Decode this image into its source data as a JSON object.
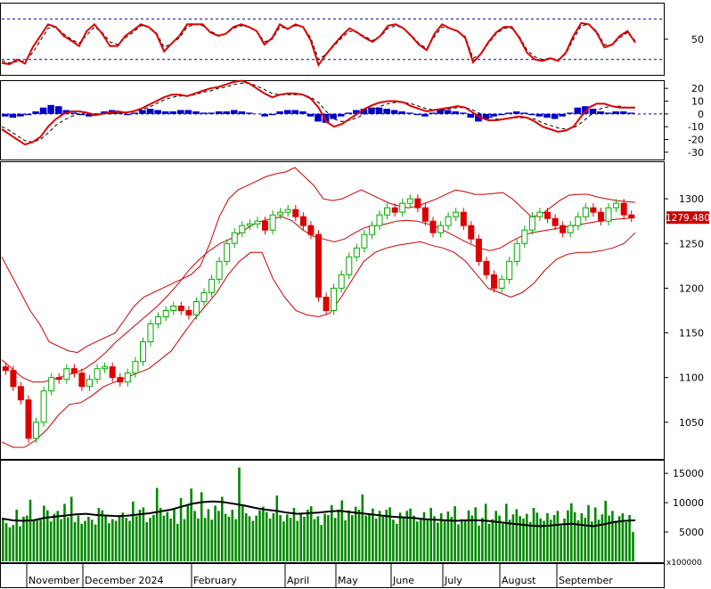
{
  "chart_data": [
    {
      "panel": "stochastic",
      "type": "line",
      "ylim": [
        0,
        100
      ],
      "reference_lines": [
        20,
        80
      ],
      "tick_labels": [
        "50"
      ],
      "tick_values": [
        50
      ],
      "series": [
        {
          "color": "#dd0000",
          "values": [
            15,
            13,
            20,
            14,
            38,
            55,
            72,
            68,
            55,
            48,
            40,
            62,
            72,
            58,
            40,
            40,
            55,
            63,
            72,
            68,
            58,
            32,
            44,
            55,
            72,
            72,
            72,
            60,
            55,
            58,
            68,
            72,
            68,
            62,
            42,
            52,
            72,
            65,
            72,
            68,
            48,
            12,
            28,
            42,
            55,
            66,
            60,
            52,
            46,
            55,
            70,
            72,
            66,
            55,
            42,
            34,
            58,
            72,
            66,
            62,
            52,
            16,
            28,
            46,
            60,
            68,
            68,
            52,
            30,
            20,
            18,
            22,
            18,
            30,
            55,
            74,
            72,
            60,
            38,
            42,
            55,
            62,
            45
          ]
        },
        {
          "color": "#000000",
          "dash": "4,3",
          "values": [
            18,
            15,
            17,
            18,
            30,
            48,
            66,
            68,
            58,
            50,
            44,
            56,
            68,
            60,
            46,
            42,
            52,
            60,
            70,
            68,
            60,
            38,
            44,
            52,
            68,
            72,
            70,
            62,
            56,
            58,
            66,
            70,
            68,
            62,
            46,
            50,
            68,
            66,
            70,
            68,
            52,
            20,
            28,
            40,
            52,
            62,
            60,
            54,
            48,
            54,
            66,
            70,
            66,
            56,
            44,
            36,
            54,
            68,
            66,
            62,
            54,
            22,
            28,
            44,
            58,
            66,
            66,
            54,
            34,
            24,
            20,
            22,
            20,
            28,
            50,
            70,
            72,
            62,
            42,
            42,
            52,
            60,
            48
          ]
        }
      ]
    },
    {
      "panel": "macd",
      "type": "line",
      "ylim": [
        -35,
        25
      ],
      "tick_labels": [
        "20",
        "10",
        "0",
        "-10",
        "-20",
        "-30"
      ],
      "tick_values": [
        20,
        10,
        0,
        -10,
        -20,
        -30
      ],
      "histogram": {
        "positive_color": "#0000cc",
        "negative_color": "#0000cc",
        "values": [
          -2,
          -3,
          -2,
          -1,
          2,
          5,
          7,
          6,
          3,
          1,
          -1,
          -2,
          -1,
          2,
          3,
          1,
          -1,
          1,
          3,
          4,
          3,
          2,
          2,
          3,
          3,
          2,
          1,
          1,
          2,
          2,
          3,
          2,
          1,
          0,
          -2,
          -1,
          2,
          3,
          3,
          2,
          -2,
          -6,
          -7,
          -4,
          -2,
          1,
          3,
          4,
          5,
          5,
          4,
          3,
          2,
          1,
          -1,
          -2,
          1,
          3,
          3,
          2,
          1,
          -3,
          -6,
          -4,
          -2,
          -1,
          1,
          2,
          1,
          -1,
          -2,
          -3,
          -4,
          -2,
          1,
          5,
          6,
          4,
          2,
          1,
          2,
          2,
          1
        ]
      },
      "series": [
        {
          "color": "#dd0000",
          "values": [
            -12,
            -16,
            -20,
            -24,
            -22,
            -18,
            -10,
            -4,
            0,
            2,
            2,
            1,
            -1,
            0,
            1,
            2,
            1,
            2,
            4,
            7,
            10,
            13,
            15,
            15,
            14,
            16,
            18,
            20,
            21,
            23,
            25,
            26,
            24,
            20,
            16,
            13,
            15,
            16,
            16,
            15,
            12,
            5,
            -6,
            -10,
            -8,
            -4,
            0,
            4,
            7,
            9,
            10,
            10,
            9,
            6,
            4,
            2,
            3,
            4,
            5,
            6,
            5,
            1,
            -3,
            -5,
            -5,
            -4,
            -3,
            -2,
            -3,
            -6,
            -10,
            -12,
            -14,
            -13,
            -10,
            -2,
            5,
            8,
            8,
            6,
            5,
            5,
            5
          ]
        },
        {
          "color": "#000000",
          "dash": "4,3",
          "values": [
            -10,
            -13,
            -17,
            -21,
            -22,
            -20,
            -15,
            -9,
            -5,
            -2,
            0,
            1,
            0,
            0,
            0,
            1,
            1,
            2,
            3,
            5,
            8,
            11,
            13,
            14,
            14,
            15,
            17,
            18,
            20,
            21,
            23,
            24,
            24,
            22,
            19,
            16,
            15,
            15,
            15,
            15,
            13,
            9,
            2,
            -4,
            -6,
            -5,
            -3,
            0,
            3,
            6,
            8,
            9,
            9,
            8,
            6,
            4,
            3,
            3,
            4,
            5,
            5,
            3,
            0,
            -2,
            -4,
            -4,
            -3,
            -3,
            -3,
            -4,
            -7,
            -9,
            -11,
            -12,
            -11,
            -7,
            -2,
            3,
            5,
            6,
            6,
            5,
            5
          ]
        }
      ]
    },
    {
      "panel": "price",
      "type": "candlestick",
      "ylim": [
        1010,
        1340
      ],
      "tick_labels": [
        "1300",
        "1250",
        "1200",
        "1150",
        "1100",
        "1050"
      ],
      "tick_values": [
        1300,
        1250,
        1200,
        1150,
        1100,
        1050
      ],
      "last_price_label": "1279.480",
      "up_color": "#00aa00",
      "down_color": "#dd0000",
      "band_color": "#cc0000",
      "close": [
        1108,
        1090,
        1075,
        1032,
        1050,
        1085,
        1100,
        1098,
        1110,
        1105,
        1090,
        1098,
        1110,
        1112,
        1100,
        1095,
        1105,
        1118,
        1140,
        1160,
        1168,
        1175,
        1180,
        1175,
        1170,
        1185,
        1195,
        1210,
        1230,
        1250,
        1262,
        1270,
        1272,
        1275,
        1265,
        1282,
        1285,
        1288,
        1280,
        1270,
        1260,
        1190,
        1175,
        1200,
        1215,
        1235,
        1245,
        1260,
        1270,
        1282,
        1290,
        1285,
        1295,
        1300,
        1290,
        1275,
        1262,
        1270,
        1280,
        1285,
        1270,
        1255,
        1230,
        1215,
        1200,
        1210,
        1230,
        1250,
        1265,
        1280,
        1285,
        1278,
        1270,
        1262,
        1270,
        1280,
        1290,
        1285,
        1275,
        1290,
        1295,
        1282,
        1279
      ],
      "band_upper": [
        1235,
        1215,
        1195,
        1175,
        1160,
        1140,
        1135,
        1130,
        1128,
        1135,
        1140,
        1145,
        1150,
        1165,
        1180,
        1190,
        1195,
        1200,
        1205,
        1210,
        1215,
        1225,
        1250,
        1280,
        1300,
        1310,
        1315,
        1320,
        1325,
        1328,
        1330,
        1335,
        1325,
        1315,
        1300,
        1298,
        1300,
        1305,
        1310,
        1305,
        1300,
        1295,
        1292,
        1290,
        1292,
        1296,
        1300,
        1305,
        1310,
        1308,
        1305,
        1305,
        1306,
        1307,
        1300,
        1290,
        1280,
        1282,
        1290,
        1298,
        1304,
        1305,
        1305,
        1302,
        1300,
        1298,
        1297,
        1296
      ],
      "band_mid": [
        1120,
        1110,
        1100,
        1095,
        1095,
        1098,
        1102,
        1105,
        1110,
        1118,
        1128,
        1140,
        1150,
        1160,
        1170,
        1180,
        1192,
        1205,
        1220,
        1232,
        1242,
        1250,
        1255,
        1262,
        1270,
        1275,
        1278,
        1280,
        1275,
        1265,
        1258,
        1255,
        1252,
        1255,
        1262,
        1268,
        1270,
        1272,
        1275,
        1276,
        1275,
        1272,
        1268,
        1262,
        1256,
        1250,
        1245,
        1242,
        1245,
        1252,
        1258,
        1262,
        1264,
        1266,
        1268,
        1270,
        1272,
        1274,
        1276,
        1277,
        1278,
        1279
      ],
      "band_lower": [
        1028,
        1022,
        1022,
        1030,
        1042,
        1058,
        1070,
        1072,
        1080,
        1090,
        1095,
        1100,
        1105,
        1110,
        1120,
        1130,
        1148,
        1165,
        1180,
        1195,
        1215,
        1230,
        1240,
        1240,
        1210,
        1190,
        1175,
        1170,
        1168,
        1172,
        1190,
        1210,
        1230,
        1240,
        1245,
        1248,
        1250,
        1252,
        1248,
        1245,
        1240,
        1230,
        1215,
        1200,
        1195,
        1190,
        1195,
        1205,
        1220,
        1232,
        1238,
        1240,
        1240,
        1242,
        1245,
        1250,
        1262
      ]
    },
    {
      "panel": "volume",
      "type": "bar",
      "ylim": [
        0,
        17000
      ],
      "unit_label": "x100000",
      "tick_labels": [
        "15000",
        "10000",
        "5000"
      ],
      "tick_values": [
        15000,
        10000,
        5000
      ],
      "bar_color": "#008800",
      "ma_color": "#000000",
      "values": [
        7200,
        6500,
        5800,
        6200,
        8800,
        6000,
        7600,
        7800,
        10500,
        6900,
        7200,
        7100,
        9500,
        8700,
        6800,
        8100,
        8600,
        7200,
        9800,
        7500,
        11000,
        6700,
        7800,
        6400,
        6900,
        7600,
        7100,
        6300,
        9100,
        8700,
        7800,
        6500,
        7200,
        6900,
        7800,
        8300,
        7400,
        6900,
        10200,
        7700,
        8800,
        9200,
        6700,
        7400,
        7900,
        12500,
        9100,
        7800,
        8400,
        7300,
        8900,
        6400,
        10800,
        7200,
        9700,
        12400,
        8600,
        7300,
        11800,
        7400,
        8900,
        7100,
        9500,
        8600,
        11000,
        8100,
        7600,
        8800,
        7200,
        16000,
        9600,
        8200,
        7700,
        6900,
        7800,
        8700,
        9300,
        8400,
        7300,
        8200,
        11200,
        7900,
        6800,
        8000,
        7400,
        9100,
        6900,
        8100,
        7600,
        8800,
        9400,
        7200,
        7700,
        6200,
        8100,
        7900,
        9600,
        7400,
        8800,
        10400,
        7000,
        8700,
        7900,
        9300,
        8800,
        11400,
        7800,
        8200,
        9000,
        7300,
        8600,
        7600,
        8800,
        9200,
        7100,
        6400,
        8300,
        7700,
        8600,
        9000,
        7800,
        6800,
        7200,
        8400,
        7000,
        9100,
        7700,
        6600,
        8200,
        7100,
        8500,
        7600,
        9400,
        6300,
        7200,
        6900,
        8700,
        7800,
        9200,
        6100,
        7400,
        9800,
        6400,
        7200,
        8600,
        7800,
        6400,
        9800,
        7100,
        8000,
        8900,
        7700,
        7300,
        8100,
        6700,
        9100,
        8300,
        7300,
        6900,
        8200,
        7100,
        7900,
        8600,
        6100,
        7300,
        8700,
        9900,
        8400,
        7000,
        8200,
        7400,
        9600,
        6800,
        9200,
        7100,
        8000,
        10300,
        7800,
        8600,
        6900,
        7700,
        8200,
        6700,
        7900,
        5000
      ],
      "ma_values": [
        7300,
        7000,
        6900,
        7000,
        7400,
        7600,
        7800,
        8000,
        8100,
        7900,
        7800,
        7700,
        7800,
        8000,
        8200,
        8500,
        8800,
        9300,
        9800,
        10100,
        10200,
        10100,
        9800,
        9500,
        9100,
        8800,
        8600,
        8300,
        8100,
        8200,
        8300,
        8500,
        8600,
        8400,
        8200,
        8000,
        7800,
        7600,
        7500,
        7400,
        7200,
        7100,
        7000,
        6900,
        7000,
        7000,
        6900,
        6700,
        6500,
        6300,
        6100,
        6000,
        6100,
        6300,
        6400,
        6200,
        6000,
        6300,
        6700,
        6900,
        7000
      ]
    }
  ],
  "x_axis": {
    "labels": [
      "November",
      "December 2024",
      "February",
      "April",
      "May",
      "June",
      "July",
      "August",
      "September"
    ]
  }
}
